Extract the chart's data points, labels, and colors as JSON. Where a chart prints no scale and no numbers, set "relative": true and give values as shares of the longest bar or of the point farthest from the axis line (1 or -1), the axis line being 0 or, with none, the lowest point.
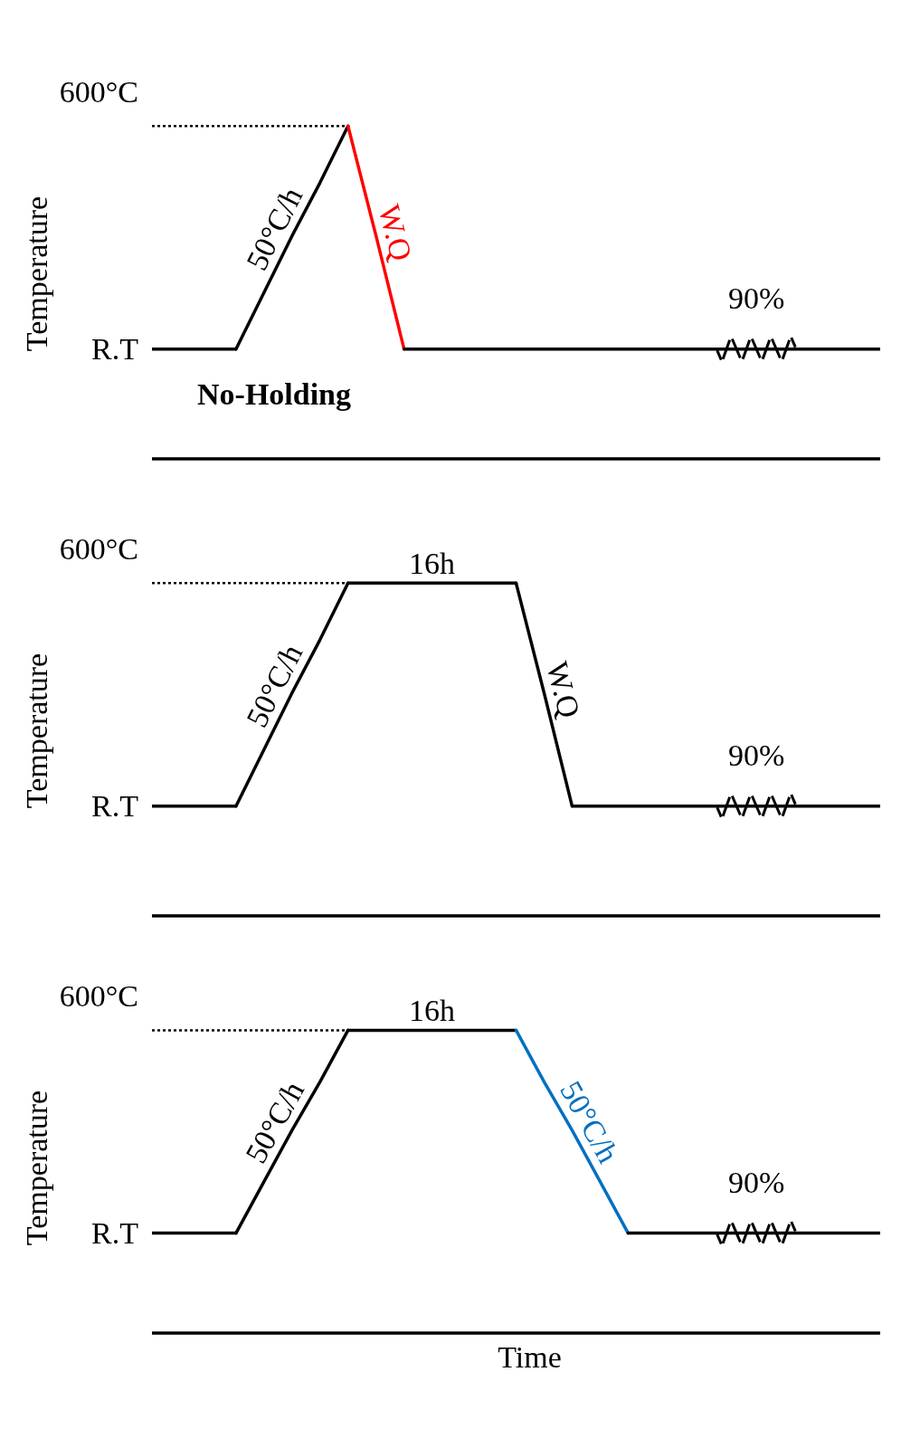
{
  "chart_data": [
    {
      "type": "line",
      "relative": true,
      "ylabel": "Temperature",
      "categories": [
        null,
        null,
        null,
        null,
        null,
        null,
        null,
        null,
        null,
        null,
        null,
        null,
        null,
        null,
        null,
        null,
        null,
        null,
        null,
        null,
        null,
        null,
        null,
        null,
        null,
        null,
        null
      ],
      "series": [
        {
          "color": "#000000",
          "values": [
            0.33,
            0.33,
            0.33,
            0.33,
            null,
            null,
            null,
            null,
            null,
            null,
            null,
            null,
            null,
            null,
            null,
            null,
            null,
            null,
            null,
            null,
            null,
            null,
            null,
            null,
            null,
            null,
            null
          ]
        },
        {
          "name": "50°C/h",
          "color": "#000000",
          "values": [
            null,
            null,
            null,
            0.33,
            0.5,
            0.67,
            0.83,
            1,
            null,
            null,
            null,
            null,
            null,
            null,
            null,
            null,
            null,
            null,
            null,
            null,
            null,
            null,
            null,
            null,
            null,
            null,
            null
          ]
        },
        {
          "name": "W.Q",
          "color": "#ff0000",
          "values": [
            null,
            null,
            null,
            null,
            null,
            null,
            null,
            1,
            0.67,
            0.33,
            null,
            null,
            null,
            null,
            null,
            null,
            null,
            null,
            null,
            null,
            null,
            null,
            null,
            null,
            null,
            null,
            null
          ]
        },
        {
          "color": "#000000",
          "values": [
            null,
            null,
            null,
            null,
            null,
            null,
            null,
            null,
            null,
            0.33,
            0.33,
            0.33,
            0.33,
            0.33,
            0.33,
            0.33,
            0.33,
            0.33,
            0.33,
            0.33,
            0.33,
            0.33,
            0.33,
            0.33,
            0.33,
            0.33,
            0.33
          ]
        }
      ],
      "ref_lines": [
        {
          "axis": "y",
          "value": 1,
          "label": "600°C",
          "line_style": "dotted",
          "color": "#000000"
        }
      ],
      "annotations": [
        "R.T",
        "90%",
        "No-Holding"
      ]
    },
    {
      "type": "line",
      "relative": true,
      "ylabel": "Temperature",
      "categories": [
        null,
        null,
        null,
        null,
        null,
        null,
        null,
        null,
        null,
        null,
        null,
        null,
        null,
        null,
        null,
        null,
        null,
        null,
        null,
        null,
        null,
        null,
        null,
        null,
        null,
        null,
        null
      ],
      "series": [
        {
          "color": "#000000",
          "values": [
            0.33,
            0.33,
            0.33,
            0.33,
            null,
            null,
            null,
            null,
            null,
            null,
            null,
            null,
            null,
            null,
            null,
            null,
            null,
            null,
            null,
            null,
            null,
            null,
            null,
            null,
            null,
            null,
            null
          ]
        },
        {
          "name": "50°C/h",
          "color": "#000000",
          "values": [
            null,
            null,
            null,
            0.33,
            0.5,
            0.67,
            0.83,
            1,
            null,
            null,
            null,
            null,
            null,
            null,
            null,
            null,
            null,
            null,
            null,
            null,
            null,
            null,
            null,
            null,
            null,
            null,
            null
          ]
        },
        {
          "name": "16h",
          "color": "#000000",
          "values": [
            null,
            null,
            null,
            null,
            null,
            null,
            null,
            1,
            1,
            1,
            1,
            1,
            1,
            1,
            null,
            null,
            null,
            null,
            null,
            null,
            null,
            null,
            null,
            null,
            null,
            null,
            null
          ]
        },
        {
          "name": "W.Q",
          "color": "#000000",
          "values": [
            null,
            null,
            null,
            null,
            null,
            null,
            null,
            null,
            null,
            null,
            null,
            null,
            null,
            1,
            0.67,
            0.33,
            null,
            null,
            null,
            null,
            null,
            null,
            null,
            null,
            null,
            null,
            null
          ]
        },
        {
          "color": "#000000",
          "values": [
            null,
            null,
            null,
            null,
            null,
            null,
            null,
            null,
            null,
            null,
            null,
            null,
            null,
            null,
            null,
            0.33,
            0.33,
            0.33,
            0.33,
            0.33,
            0.33,
            0.33,
            0.33,
            0.33,
            0.33,
            0.33,
            0.33
          ]
        }
      ],
      "ref_lines": [
        {
          "axis": "y",
          "value": 1,
          "label": "600°C",
          "line_style": "dotted",
          "color": "#000000"
        }
      ],
      "annotations": [
        "R.T",
        "90%"
      ]
    },
    {
      "type": "line",
      "relative": true,
      "ylabel": "Temperature",
      "xlabel": "Time",
      "categories": [
        null,
        null,
        null,
        null,
        null,
        null,
        null,
        null,
        null,
        null,
        null,
        null,
        null,
        null,
        null,
        null,
        null,
        null,
        null,
        null,
        null,
        null,
        null,
        null,
        null,
        null,
        null
      ],
      "series": [
        {
          "color": "#000000",
          "values": [
            0.33,
            0.33,
            0.33,
            0.33,
            null,
            null,
            null,
            null,
            null,
            null,
            null,
            null,
            null,
            null,
            null,
            null,
            null,
            null,
            null,
            null,
            null,
            null,
            null,
            null,
            null,
            null,
            null
          ]
        },
        {
          "name": "50°C/h",
          "color": "#000000",
          "values": [
            null,
            null,
            null,
            0.33,
            0.5,
            0.67,
            0.83,
            1,
            null,
            null,
            null,
            null,
            null,
            null,
            null,
            null,
            null,
            null,
            null,
            null,
            null,
            null,
            null,
            null,
            null,
            null,
            null
          ]
        },
        {
          "name": "16h",
          "color": "#000000",
          "values": [
            null,
            null,
            null,
            null,
            null,
            null,
            null,
            1,
            1,
            1,
            1,
            1,
            1,
            1,
            null,
            null,
            null,
            null,
            null,
            null,
            null,
            null,
            null,
            null,
            null,
            null,
            null
          ]
        },
        {
          "name": "50°C/h",
          "color": "#0070c0",
          "values": [
            null,
            null,
            null,
            null,
            null,
            null,
            null,
            null,
            null,
            null,
            null,
            null,
            null,
            1,
            0.83,
            0.67,
            0.5,
            0.33,
            null,
            null,
            null,
            null,
            null,
            null,
            null,
            null,
            null
          ]
        },
        {
          "color": "#000000",
          "values": [
            null,
            null,
            null,
            null,
            null,
            null,
            null,
            null,
            null,
            null,
            null,
            null,
            null,
            null,
            null,
            null,
            null,
            0.33,
            0.33,
            0.33,
            0.33,
            0.33,
            0.33,
            0.33,
            0.33,
            0.33,
            0.33
          ]
        }
      ],
      "ref_lines": [
        {
          "axis": "y",
          "value": 1,
          "label": "600°C",
          "line_style": "dotted",
          "color": "#000000"
        }
      ],
      "annotations": [
        "R.T",
        "90%"
      ]
    }
  ]
}
